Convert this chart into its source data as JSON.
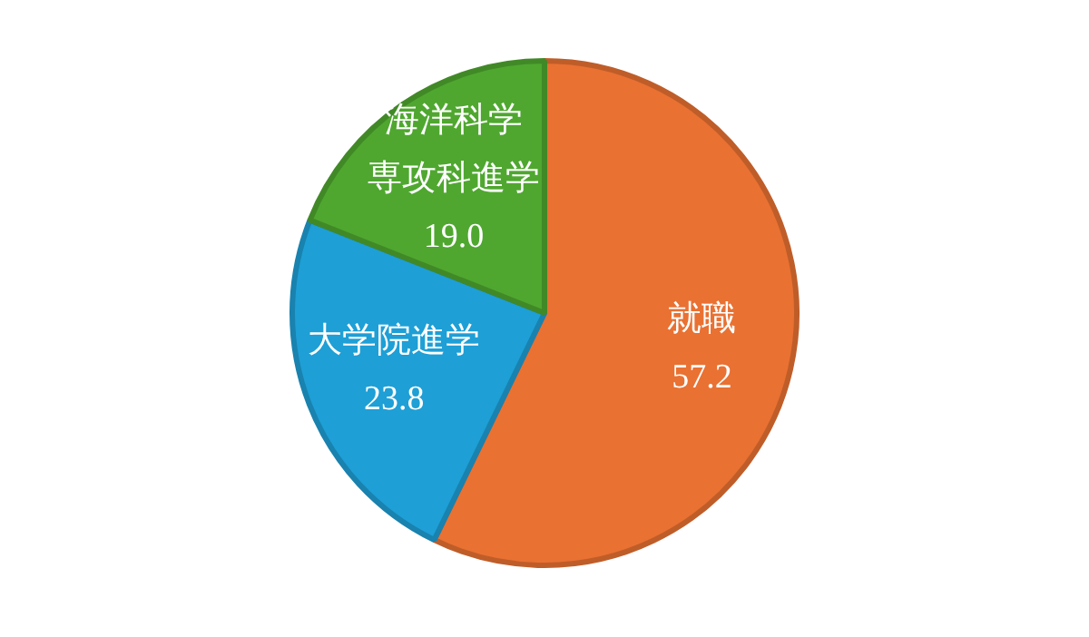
{
  "chart_data": {
    "type": "pie",
    "categories": [
      "就職",
      "大学院進学",
      "海洋科学専攻科進学"
    ],
    "values": [
      57.2,
      23.8,
      19.0
    ],
    "value_labels": [
      "57.2",
      "23.8",
      "19.0"
    ],
    "colors": [
      "#e97132",
      "#1e9fd6",
      "#4fa72f"
    ],
    "legend": false
  }
}
